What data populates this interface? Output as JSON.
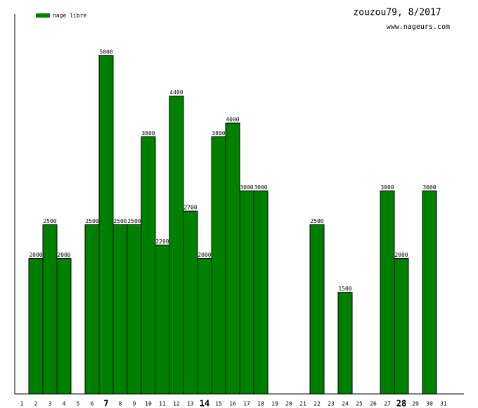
{
  "chart_data": {
    "type": "bar",
    "title": "zouzou79, 8/2017",
    "subtitle": "www.nageurs.com",
    "categories": [
      "1",
      "2",
      "3",
      "4",
      "5",
      "6",
      "7",
      "8",
      "9",
      "10",
      "11",
      "12",
      "13",
      "14",
      "15",
      "16",
      "17",
      "18",
      "19",
      "20",
      "21",
      "22",
      "23",
      "24",
      "25",
      "26",
      "27",
      "28",
      "29",
      "30",
      "31"
    ],
    "emphasized_categories": [
      6,
      13,
      27
    ],
    "series": [
      {
        "name": "nage libre",
        "color": "#008000",
        "values": [
          null,
          2000,
          2500,
          2000,
          null,
          2500,
          5000,
          2500,
          2500,
          3800,
          2200,
          4400,
          2700,
          2000,
          3800,
          4000,
          3000,
          3000,
          null,
          null,
          null,
          2500,
          null,
          1500,
          null,
          null,
          3000,
          2000,
          null,
          3000,
          null
        ]
      }
    ],
    "ylim": [
      0,
      5600
    ]
  }
}
